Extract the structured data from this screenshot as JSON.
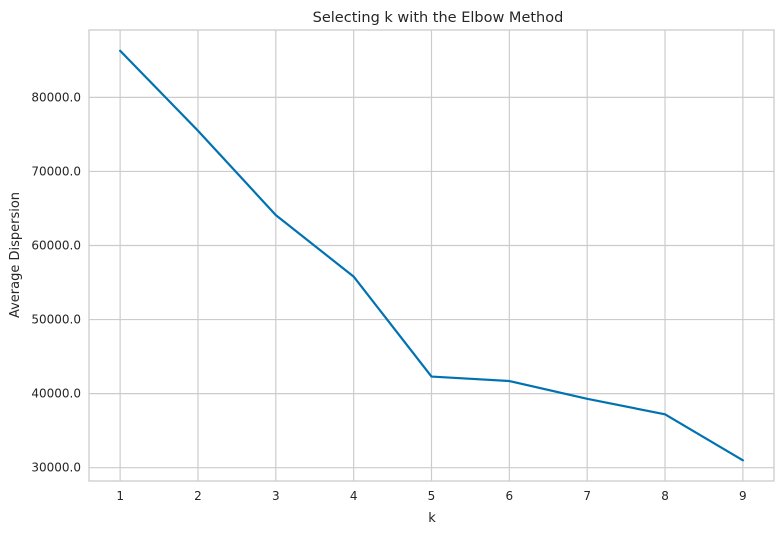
{
  "chart_data": {
    "type": "line",
    "title": "Selecting k with the Elbow Method",
    "xlabel": "k",
    "ylabel": "Average Dispersion",
    "x": [
      1,
      2,
      3,
      4,
      5,
      6,
      7,
      8,
      9
    ],
    "series": [
      {
        "values": [
          86300,
          75500,
          64100,
          55800,
          42300,
          41700,
          39300,
          37200,
          31000
        ],
        "color": "#0072b2"
      }
    ],
    "xticks": [
      "1",
      "2",
      "3",
      "4",
      "5",
      "6",
      "7",
      "8",
      "9"
    ],
    "yticks": [
      "30000.0",
      "40000.0",
      "50000.0",
      "60000.0",
      "70000.0",
      "80000.0"
    ],
    "xlim": [
      0.6,
      9.4
    ],
    "ylim": [
      28200,
      89100
    ],
    "grid": true,
    "grid_color": "#cccccc",
    "axes_color": "#cccccc"
  }
}
